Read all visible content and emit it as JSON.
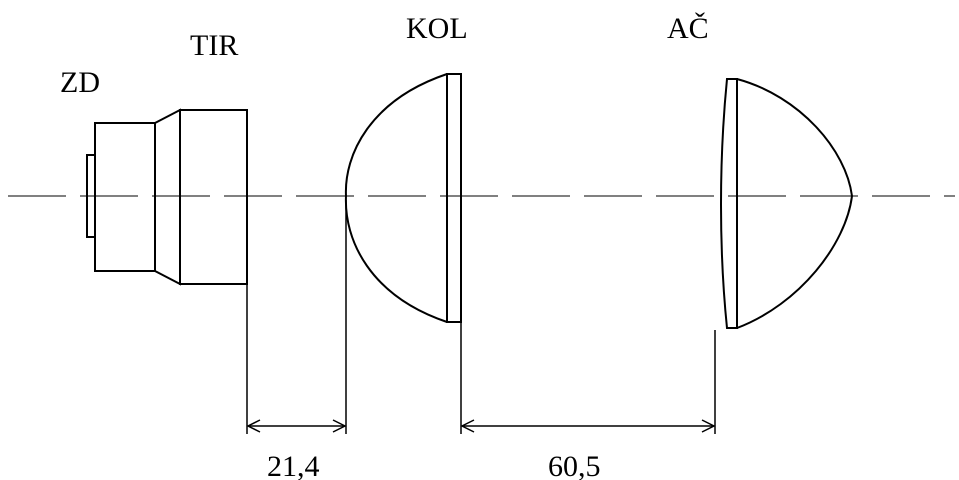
{
  "labels": {
    "zd": "ZD",
    "tir": "TIR",
    "kol": "KOL",
    "ac": "AČ"
  },
  "dimensions": {
    "tir_to_kol": "21,4",
    "kol_to_ac": "60,5"
  },
  "colors": {
    "ink": "#000000",
    "background": "#ffffff"
  }
}
